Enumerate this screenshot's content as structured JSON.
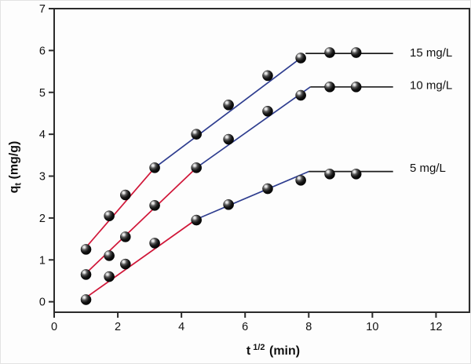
{
  "figure": {
    "background": "#fdfdfd"
  },
  "chart_data": {
    "type": "scatter",
    "title": "",
    "xlabel": {
      "base": "t",
      "sup": "1/2",
      "rest": " (min)"
    },
    "ylabel": {
      "base": "q",
      "sub": "t",
      "rest": " (mg/g)"
    },
    "grid": false,
    "legend_position": "right-inline",
    "x_axis": {
      "min": 0,
      "max": 13.05,
      "ticks": [
        0,
        2,
        4,
        6,
        8,
        10,
        12
      ]
    },
    "y_axis": {
      "min": -0.25,
      "max": 7,
      "ticks": [
        0,
        1,
        2,
        3,
        4,
        5,
        6,
        7
      ]
    },
    "x": [
      1.0,
      1.73,
      2.24,
      3.16,
      4.47,
      5.48,
      6.71,
      7.75,
      8.66,
      9.49
    ],
    "series": [
      {
        "label": "15 mg/L",
        "label_y": 5.95,
        "values": [
          1.25,
          2.05,
          2.55,
          3.2,
          4.0,
          4.7,
          5.4,
          5.82,
          5.95,
          5.95
        ],
        "fit_segments": [
          {
            "color": "red",
            "from": [
              1.0,
              1.3
            ],
            "to": [
              3.16,
              3.2
            ]
          },
          {
            "color": "blue",
            "from": [
              3.16,
              3.2
            ],
            "to": [
              7.75,
              5.82
            ]
          },
          {
            "color": "black",
            "from": [
              7.9,
              5.93
            ],
            "to": [
              10.65,
              5.93
            ]
          }
        ]
      },
      {
        "label": "10 mg/L",
        "label_y": 5.17,
        "values": [
          0.65,
          1.1,
          1.55,
          2.3,
          3.2,
          3.88,
          4.55,
          4.93,
          5.13,
          5.13
        ],
        "fit_segments": [
          {
            "color": "red",
            "from": [
              1.0,
              0.68
            ],
            "to": [
              4.47,
              3.2
            ]
          },
          {
            "color": "blue",
            "from": [
              4.47,
              3.2
            ],
            "to": [
              8.05,
              5.13
            ]
          },
          {
            "color": "black",
            "from": [
              8.05,
              5.13
            ],
            "to": [
              10.65,
              5.13
            ]
          }
        ]
      },
      {
        "label": "5 mg/L",
        "label_y": 3.2,
        "values": [
          0.05,
          0.6,
          0.9,
          1.4,
          1.95,
          2.32,
          2.7,
          2.9,
          3.05,
          3.05
        ],
        "fit_segments": [
          {
            "color": "red",
            "from": [
              1.0,
              0.1
            ],
            "to": [
              4.47,
              1.97
            ]
          },
          {
            "color": "blue",
            "from": [
              4.47,
              1.97
            ],
            "to": [
              8.0,
              3.11
            ]
          },
          {
            "color": "black",
            "from": [
              8.0,
              3.11
            ],
            "to": [
              10.65,
              3.11
            ]
          }
        ]
      }
    ],
    "colors": {
      "red": "#d01638",
      "blue": "#2e3d8f",
      "black": "#1c1c1c",
      "frame": "#2b2b2b",
      "marker": "#000000",
      "text": "#111111"
    }
  }
}
